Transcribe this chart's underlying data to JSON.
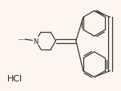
{
  "bg_color": "#fdf6ee",
  "line_color": "#3a3a3a",
  "text_color": "#222222",
  "hcl_text": "HCl",
  "hcl_fontsize": 8,
  "figsize": [
    1.51,
    1.15
  ],
  "dpi": 100,
  "N_label": "N",
  "N_fontsize": 6,
  "methyl_label": "—",
  "methyl_char": "N"
}
